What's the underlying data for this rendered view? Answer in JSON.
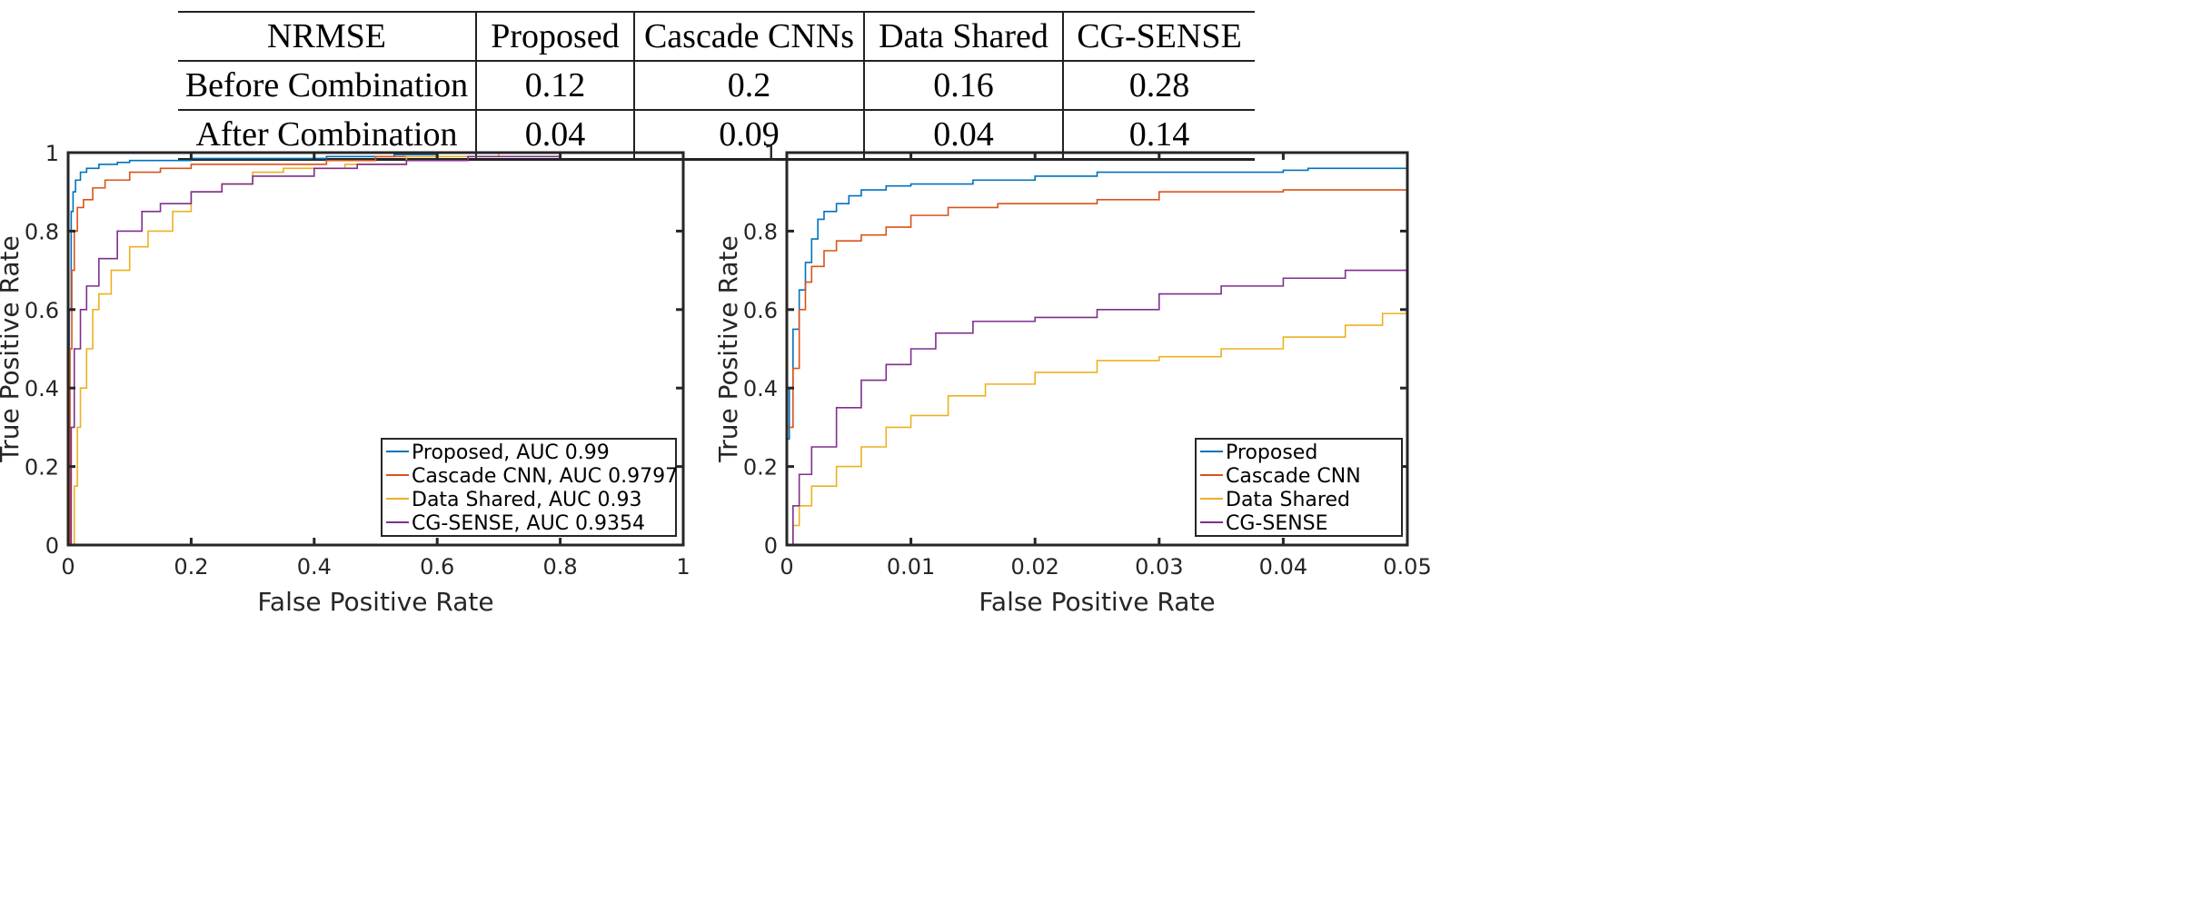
{
  "table": {
    "header": [
      "NRMSE",
      "Proposed",
      "Cascade CNNs",
      "Data Shared",
      "CG-SENSE"
    ],
    "rows": [
      [
        "Before Combination",
        "0.12",
        "0.2",
        "0.16",
        "0.28"
      ],
      [
        "After Combination",
        "0.04",
        "0.09",
        "0.04",
        "0.14"
      ]
    ]
  },
  "chart_data": [
    {
      "type": "line",
      "xlabel": "False Positive Rate",
      "ylabel": "True Positive Rate",
      "xlim": [
        0,
        1
      ],
      "ylim": [
        0,
        1
      ],
      "xticks": [
        "0",
        "0.2",
        "0.4",
        "0.6",
        "0.8",
        "1"
      ],
      "yticks": [
        "0",
        "0.2",
        "0.4",
        "0.6",
        "0.8",
        "1"
      ],
      "xtick_values": [
        0,
        0.2,
        0.4,
        0.6,
        0.8,
        1
      ],
      "ytick_values": [
        0,
        0.2,
        0.4,
        0.6,
        0.8,
        1
      ],
      "grid": false,
      "legend_placement": "bottom-right",
      "series": [
        {
          "name": "Proposed, AUC 0.99",
          "color": "#0072BD",
          "x": [
            0,
            0.002,
            0.005,
            0.008,
            0.012,
            0.02,
            0.03,
            0.05,
            0.08,
            0.1,
            0.2,
            0.4,
            0.42,
            0.53,
            0.6,
            1
          ],
          "y": [
            0,
            0.6,
            0.85,
            0.9,
            0.93,
            0.95,
            0.96,
            0.97,
            0.975,
            0.98,
            0.985,
            0.985,
            0.99,
            0.995,
            1,
            1
          ]
        },
        {
          "name": "Cascade CNN, AUC 0.9797",
          "color": "#D95319",
          "x": [
            0,
            0.003,
            0.006,
            0.01,
            0.015,
            0.025,
            0.04,
            0.06,
            0.1,
            0.15,
            0.2,
            0.35,
            0.42,
            0.5,
            0.6,
            1
          ],
          "y": [
            0,
            0.5,
            0.7,
            0.8,
            0.86,
            0.88,
            0.91,
            0.93,
            0.95,
            0.96,
            0.97,
            0.97,
            0.98,
            0.99,
            1,
            1
          ]
        },
        {
          "name": "Data Shared, AUC 0.93",
          "color": "#EDB120",
          "x": [
            0,
            0.01,
            0.015,
            0.02,
            0.03,
            0.04,
            0.05,
            0.07,
            0.1,
            0.13,
            0.17,
            0.2,
            0.25,
            0.3,
            0.35,
            0.45,
            0.55,
            0.7,
            1
          ],
          "y": [
            0,
            0.15,
            0.3,
            0.4,
            0.5,
            0.6,
            0.64,
            0.7,
            0.76,
            0.8,
            0.85,
            0.9,
            0.92,
            0.95,
            0.96,
            0.97,
            0.99,
            1,
            1
          ]
        },
        {
          "name": "CG-SENSE, AUC 0.9354",
          "color": "#7E2F8E",
          "x": [
            0,
            0.005,
            0.01,
            0.02,
            0.03,
            0.05,
            0.08,
            0.12,
            0.15,
            0.2,
            0.25,
            0.3,
            0.4,
            0.47,
            0.55,
            0.65,
            0.8,
            1
          ],
          "y": [
            0,
            0.3,
            0.5,
            0.6,
            0.66,
            0.73,
            0.8,
            0.85,
            0.87,
            0.9,
            0.92,
            0.94,
            0.96,
            0.97,
            0.98,
            0.99,
            1,
            1
          ]
        }
      ]
    },
    {
      "type": "line",
      "xlabel": "False Positive Rate",
      "ylabel": "True Positive Rate",
      "xlim": [
        0,
        0.05
      ],
      "ylim": [
        0,
        1
      ],
      "xticks": [
        "0",
        "0.01",
        "0.02",
        "0.03",
        "0.04",
        "0.05"
      ],
      "yticks": [
        "0",
        "0.2",
        "0.4",
        "0.6",
        "0.8",
        "1"
      ],
      "xtick_values": [
        0,
        0.01,
        0.02,
        0.03,
        0.04,
        0.05
      ],
      "ytick_values": [
        0,
        0.2,
        0.4,
        0.6,
        0.8,
        1
      ],
      "grid": false,
      "legend_placement": "bottom-right",
      "series": [
        {
          "name": "Proposed",
          "color": "#0072BD",
          "x": [
            0,
            0.0002,
            0.0005,
            0.001,
            0.0015,
            0.002,
            0.0025,
            0.003,
            0.004,
            0.005,
            0.006,
            0.008,
            0.01,
            0.015,
            0.02,
            0.025,
            0.04,
            0.042,
            0.05
          ],
          "y": [
            0.27,
            0.4,
            0.55,
            0.65,
            0.72,
            0.78,
            0.83,
            0.85,
            0.87,
            0.89,
            0.905,
            0.915,
            0.92,
            0.93,
            0.94,
            0.95,
            0.955,
            0.96,
            0.96
          ]
        },
        {
          "name": "Cascade CNN",
          "color": "#D95319",
          "x": [
            0,
            0.0005,
            0.001,
            0.0015,
            0.002,
            0.003,
            0.004,
            0.006,
            0.008,
            0.01,
            0.013,
            0.017,
            0.025,
            0.03,
            0.04,
            0.05
          ],
          "y": [
            0.3,
            0.45,
            0.6,
            0.67,
            0.71,
            0.75,
            0.775,
            0.79,
            0.81,
            0.84,
            0.86,
            0.87,
            0.88,
            0.9,
            0.905,
            0.91
          ]
        },
        {
          "name": "Data Shared",
          "color": "#EDB120",
          "x": [
            0,
            0.0005,
            0.001,
            0.002,
            0.004,
            0.006,
            0.008,
            0.01,
            0.013,
            0.016,
            0.02,
            0.025,
            0.03,
            0.035,
            0.04,
            0.045,
            0.048,
            0.05
          ],
          "y": [
            0,
            0.05,
            0.1,
            0.15,
            0.2,
            0.25,
            0.3,
            0.33,
            0.38,
            0.41,
            0.44,
            0.47,
            0.48,
            0.5,
            0.53,
            0.56,
            0.59,
            0.62
          ]
        },
        {
          "name": "CG-SENSE",
          "color": "#7E2F8E",
          "x": [
            0,
            0.0005,
            0.001,
            0.002,
            0.004,
            0.006,
            0.008,
            0.01,
            0.012,
            0.015,
            0.02,
            0.025,
            0.03,
            0.035,
            0.04,
            0.045,
            0.05
          ],
          "y": [
            0,
            0.1,
            0.18,
            0.25,
            0.35,
            0.42,
            0.46,
            0.5,
            0.54,
            0.57,
            0.58,
            0.6,
            0.64,
            0.66,
            0.68,
            0.7,
            0.73
          ]
        }
      ]
    }
  ]
}
